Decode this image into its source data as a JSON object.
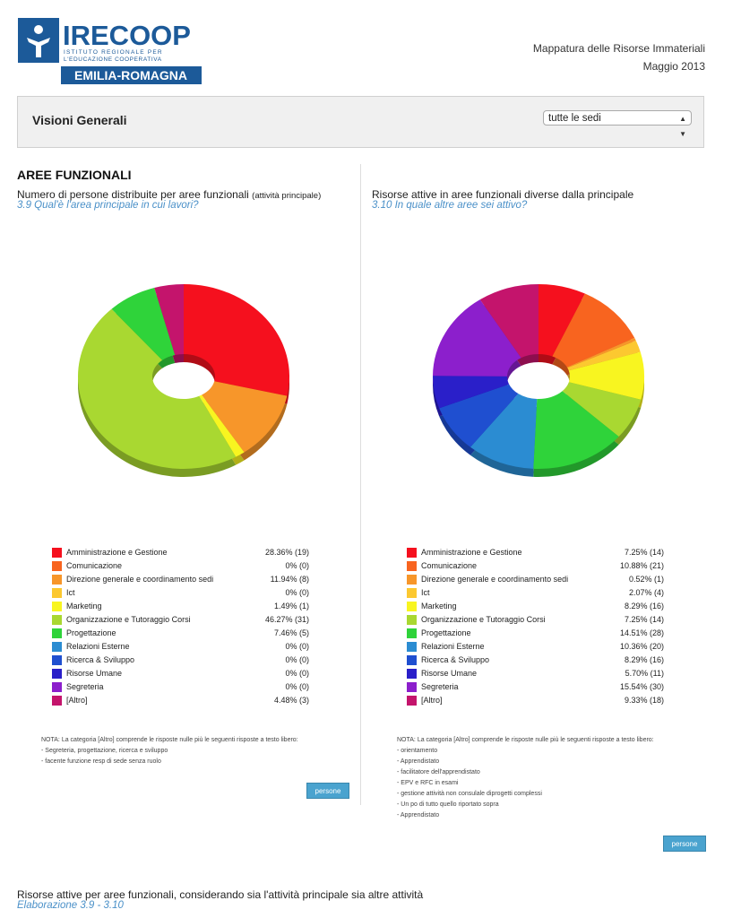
{
  "header": {
    "logo_main": "IRECOOP",
    "logo_line1": "ISTITUTO REGIONALE PER",
    "logo_line2": "L'EDUCAZIONE COOPERATIVA",
    "logo_region": "EMILIA-ROMAGNA",
    "doc_title": "Mappatura delle Risorse Immateriali",
    "date": "Maggio 2013"
  },
  "filter": {
    "title": "Visioni Generali",
    "selected": "tutte le sedi"
  },
  "section_title": "AREE FUNZIONALI",
  "colors": [
    "#f5101e",
    "#f8641f",
    "#f7962a",
    "#fcc830",
    "#f8f520",
    "#a9d831",
    "#2fd33a",
    "#2b8cd2",
    "#1f4fd0",
    "#2a1fc9",
    "#8c1fcc",
    "#c4146c"
  ],
  "chart_data": [
    {
      "type": "pie",
      "title": "Numero di persone distribuite per aree funzionali",
      "title_note": "(attività principale)",
      "subtitle": "3.9 Qual'è l'area principale in cui lavori?",
      "categories": [
        "Amministrazione e Gestione",
        "Comunicazione",
        "Direzione generale e coordinamento sedi",
        "Ict",
        "Marketing",
        "Organizzazione e Tutoraggio Corsi",
        "Progettazione",
        "Relazioni Esterne",
        "Ricerca & Sviluppo",
        "Risorse Umane",
        "Segreteria",
        "[Altro]"
      ],
      "values": [
        19,
        0,
        8,
        0,
        1,
        31,
        5,
        0,
        0,
        0,
        0,
        3
      ],
      "labels": [
        "28.36% (19)",
        "0% (0)",
        "11.94% (8)",
        "0% (0)",
        "1.49% (1)",
        "46.27% (31)",
        "7.46% (5)",
        "0% (0)",
        "0% (0)",
        "0% (0)",
        "0% (0)",
        "4.48% (3)"
      ],
      "note": {
        "intro": "NOTA: La categoria [Altro] comprende le risposte nulle più le seguenti risposte a testo libero:",
        "items": [
          "- Segreteria, progettazione, ricerca e sviluppo",
          "- facente funzione resp di sede senza ruolo"
        ]
      },
      "button": "persone"
    },
    {
      "type": "pie",
      "title": "Risorse attive in aree funzionali diverse dalla principale",
      "subtitle": "3.10 In quale altre aree sei attivo?",
      "categories": [
        "Amministrazione e Gestione",
        "Comunicazione",
        "Direzione generale e coordinamento sedi",
        "Ict",
        "Marketing",
        "Organizzazione e Tutoraggio Corsi",
        "Progettazione",
        "Relazioni Esterne",
        "Ricerca & Sviluppo",
        "Risorse Umane",
        "Segreteria",
        "[Altro]"
      ],
      "values": [
        14,
        21,
        1,
        4,
        16,
        14,
        28,
        20,
        16,
        11,
        30,
        18
      ],
      "labels": [
        "7.25% (14)",
        "10.88% (21)",
        "0.52% (1)",
        "2.07% (4)",
        "8.29% (16)",
        "7.25% (14)",
        "14.51% (28)",
        "10.36% (20)",
        "8.29% (16)",
        "5.70% (11)",
        "15.54% (30)",
        "9.33% (18)"
      ],
      "note": {
        "intro": "NOTA: La categoria [Altro] comprende le risposte nulle più le seguenti risposte a testo libero:",
        "items": [
          "- orientamento",
          "- Apprendistato",
          "- facilitatore dell'apprendistato",
          "- EPV e RFC in esami",
          "- gestione attività non consulale diprogetti complessi",
          "- Un po di tutto quello riportato sopra",
          "- Apprendistato"
        ]
      },
      "button": "persone"
    }
  ],
  "bottom": {
    "title": "Risorse attive per aree funzionali, considerando sia l'attività principale sia altre attività",
    "subtitle": "Elaborazione 3.9 - 3.10"
  }
}
